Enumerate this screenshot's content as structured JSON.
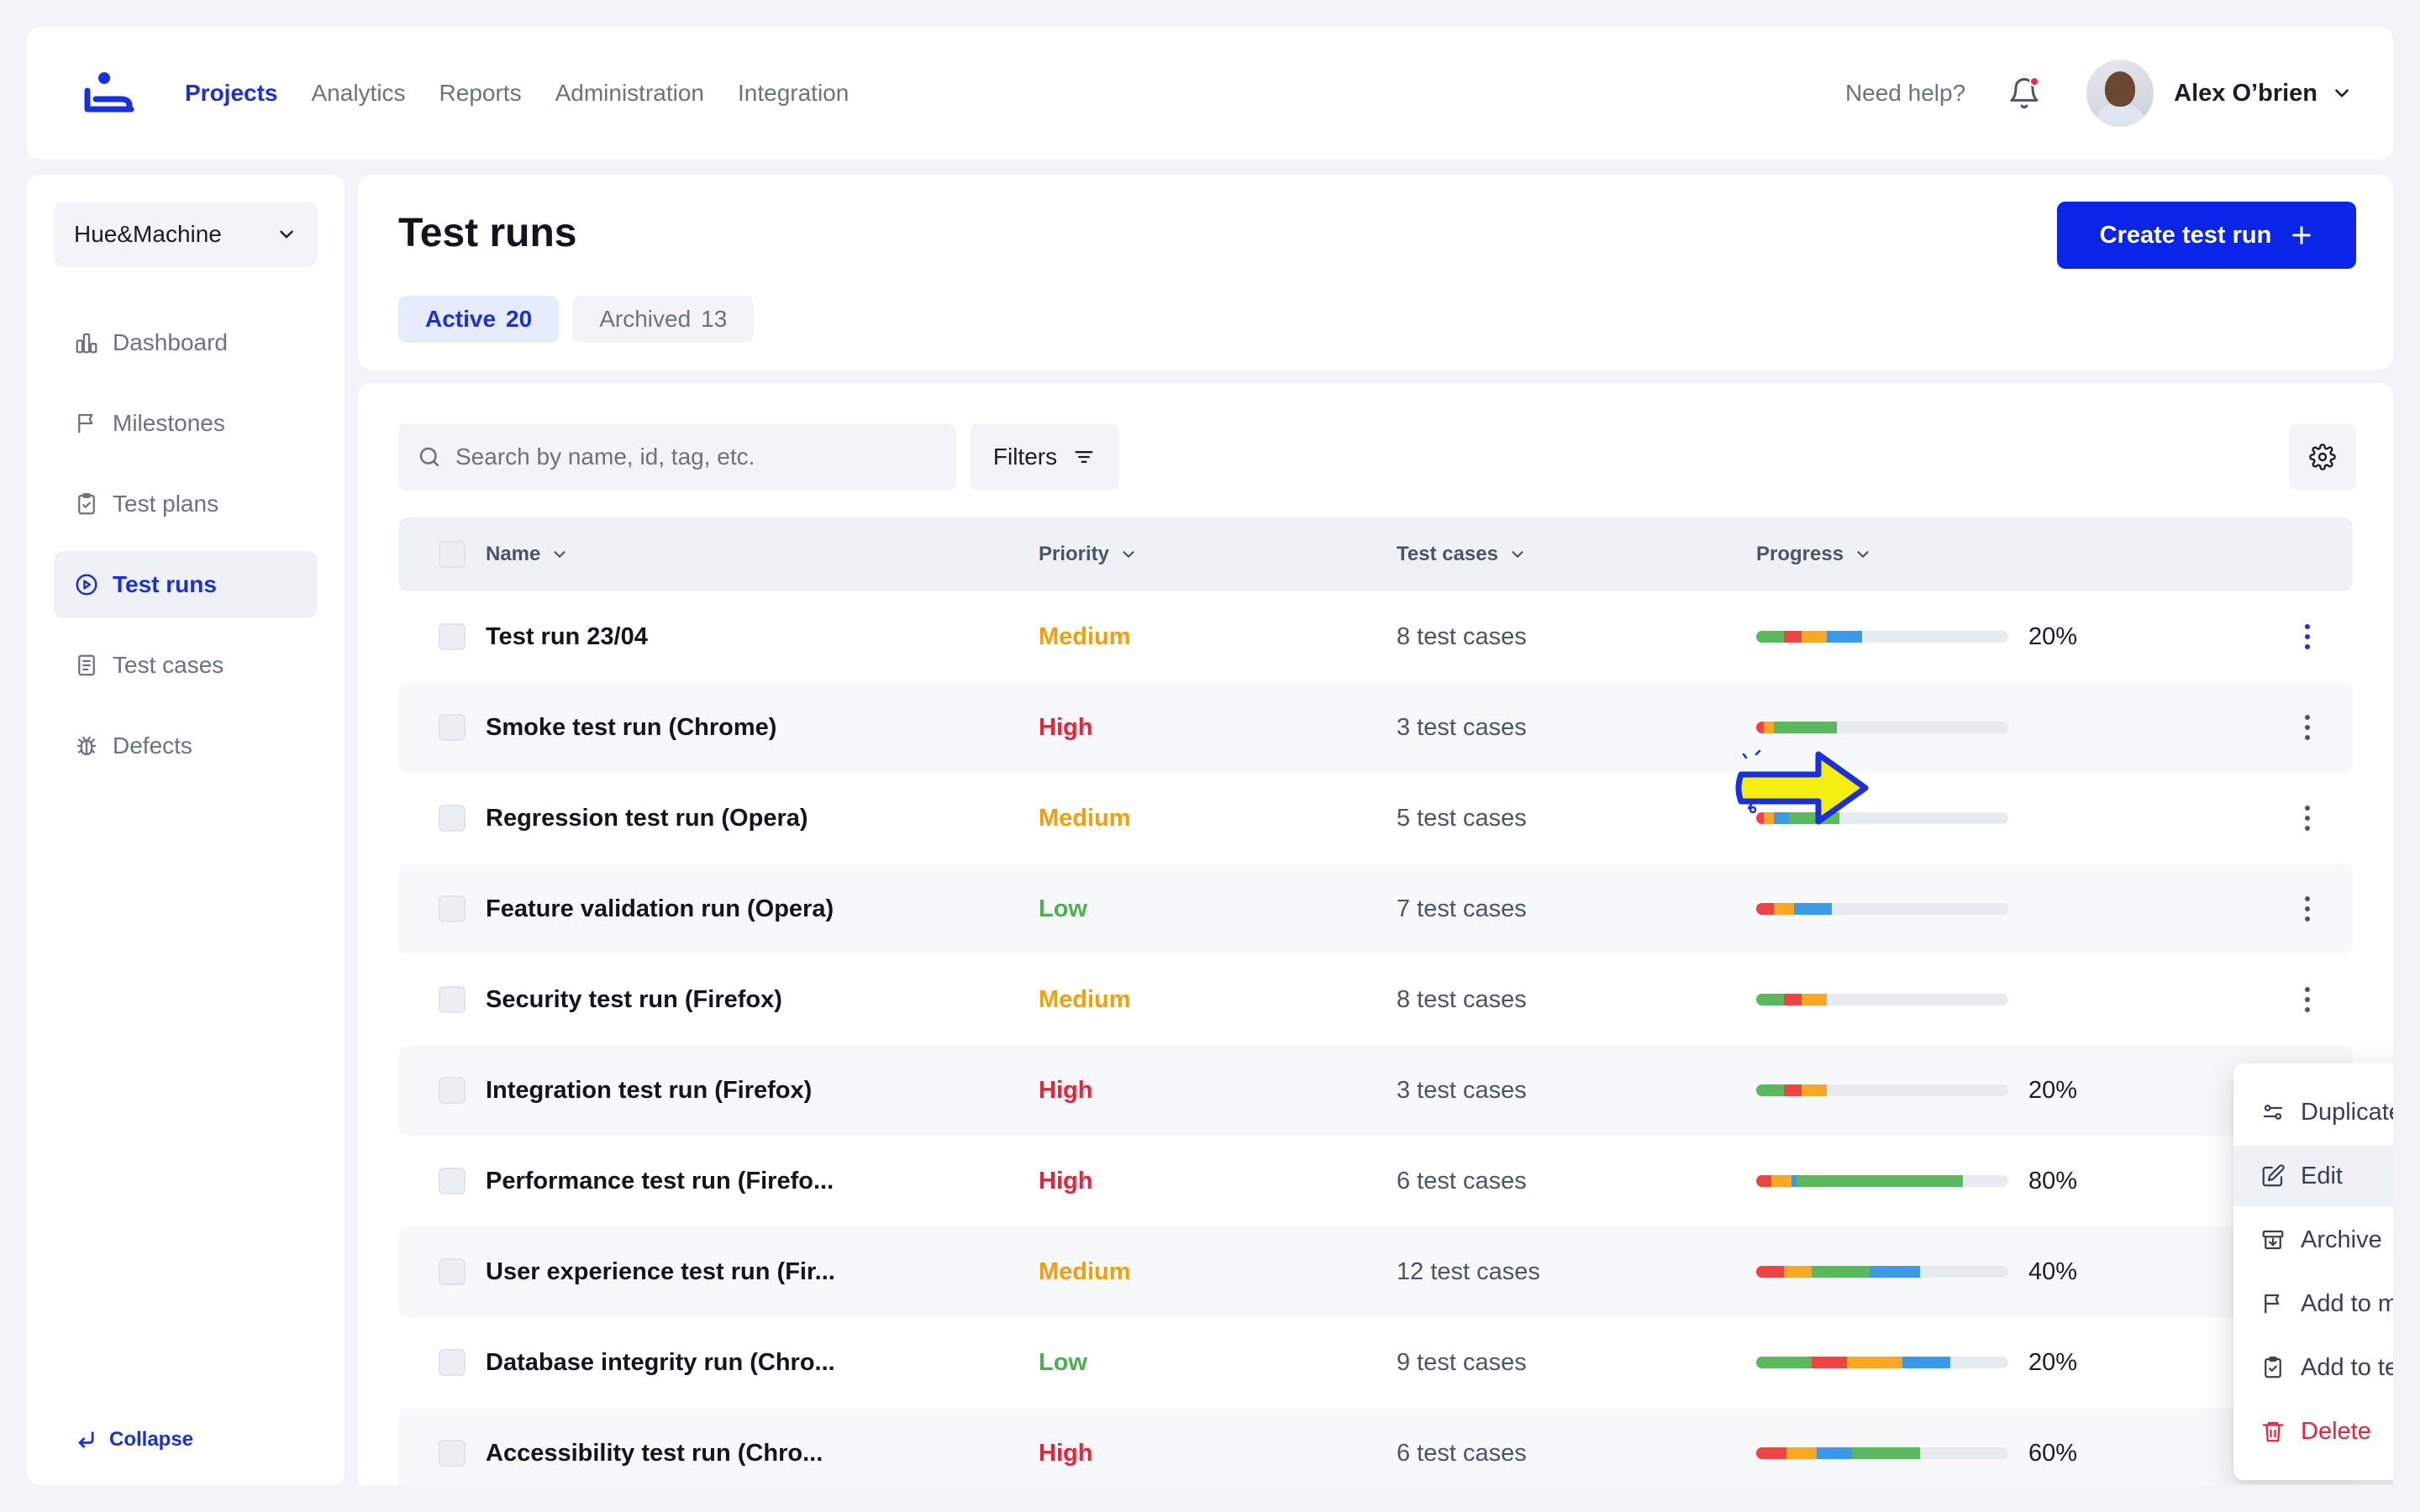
{
  "topnav": {
    "items": [
      {
        "label": "Projects",
        "active": true
      },
      {
        "label": "Analytics"
      },
      {
        "label": "Reports"
      },
      {
        "label": "Administration"
      },
      {
        "label": "Integration"
      }
    ],
    "help_label": "Need help?",
    "user_name": "Alex O’brien"
  },
  "sidebar": {
    "project": "Hue&Machine",
    "items": [
      {
        "label": "Dashboard",
        "icon": "dashboard-icon"
      },
      {
        "label": "Milestones",
        "icon": "flag-icon"
      },
      {
        "label": "Test plans",
        "icon": "clipboard-icon"
      },
      {
        "label": "Test runs",
        "icon": "play-circle-icon",
        "active": true
      },
      {
        "label": "Test cases",
        "icon": "document-icon"
      },
      {
        "label": "Defects",
        "icon": "bug-icon"
      }
    ],
    "collapse_label": "Collapse"
  },
  "header": {
    "title": "Test runs",
    "create_label": "Create test run",
    "tabs": [
      {
        "label": "Active",
        "count": "20",
        "active": true
      },
      {
        "label": "Archived",
        "count": "13"
      }
    ]
  },
  "toolbar": {
    "search_placeholder": "Search by name, id, tag, etc.",
    "filters_label": "Filters"
  },
  "table": {
    "columns": {
      "name": "Name",
      "priority": "Priority",
      "cases": "Test cases",
      "progress": "Progress"
    },
    "rows": [
      {
        "name": "Test run 23/04",
        "priority": "Medium",
        "cases": "8 test cases",
        "progress": "20%",
        "segments": [
          [
            11,
            "#5cb85c"
          ],
          [
            7,
            "#ef4444"
          ],
          [
            10,
            "#f9a825"
          ],
          [
            14,
            "#3b9ae8"
          ]
        ]
      },
      {
        "name": "Smoke test run (Chrome)",
        "priority": "High",
        "cases": "3 test cases",
        "progress": "",
        "segments": [
          [
            3,
            "#ef4444"
          ],
          [
            4,
            "#f9a825"
          ],
          [
            25,
            "#5cb85c"
          ]
        ]
      },
      {
        "name": "Regression test run (Opera)",
        "priority": "Medium",
        "cases": "5 test cases",
        "progress": "",
        "segments": [
          [
            3,
            "#ef4444"
          ],
          [
            4,
            "#f9a825"
          ],
          [
            6,
            "#3b9ae8"
          ],
          [
            20,
            "#5cb85c"
          ]
        ]
      },
      {
        "name": "Feature validation run (Opera)",
        "priority": "Low",
        "cases": "7 test cases",
        "progress": "",
        "segments": [
          [
            7,
            "#ef4444"
          ],
          [
            8,
            "#f9a825"
          ],
          [
            15,
            "#3b9ae8"
          ]
        ]
      },
      {
        "name": "Security test run (Firefox)",
        "priority": "Medium",
        "cases": "8 test cases",
        "progress": "",
        "segments": [
          [
            11,
            "#5cb85c"
          ],
          [
            7,
            "#ef4444"
          ],
          [
            10,
            "#f9a825"
          ]
        ]
      },
      {
        "name": "Integration test run (Firefox)",
        "priority": "High",
        "cases": "3 test cases",
        "progress": "20%",
        "segments": [
          [
            11,
            "#5cb85c"
          ],
          [
            7,
            "#ef4444"
          ],
          [
            10,
            "#f9a825"
          ]
        ]
      },
      {
        "name": "Performance test run (Firefo...",
        "priority": "High",
        "cases": "6 test cases",
        "progress": "80%",
        "segments": [
          [
            6,
            "#ef4444"
          ],
          [
            8,
            "#f9a825"
          ],
          [
            2,
            "#3b9ae8"
          ],
          [
            66,
            "#5cb85c"
          ]
        ]
      },
      {
        "name": "User experience test run (Fir...",
        "priority": "Medium",
        "cases": "12 test cases",
        "progress": "40%",
        "segments": [
          [
            11,
            "#ef4444"
          ],
          [
            11,
            "#f9a825"
          ],
          [
            23,
            "#5cb85c"
          ],
          [
            20,
            "#3b9ae8"
          ]
        ]
      },
      {
        "name": "Database integrity run (Chro...",
        "priority": "Low",
        "cases": "9 test cases",
        "progress": "20%",
        "segments": [
          [
            22,
            "#5cb85c"
          ],
          [
            14,
            "#ef4444"
          ],
          [
            22,
            "#f9a825"
          ],
          [
            19,
            "#3b9ae8"
          ]
        ]
      },
      {
        "name": "Accessibility test run (Chro...",
        "priority": "High",
        "cases": "6 test cases",
        "progress": "60%",
        "segments": [
          [
            12,
            "#ef4444"
          ],
          [
            12,
            "#f9a825"
          ],
          [
            14,
            "#3b9ae8"
          ],
          [
            27,
            "#5cb85c"
          ]
        ]
      }
    ]
  },
  "priority_colors": {
    "High": "#e8233b",
    "Medium": "#f59e0b",
    "Low": "#4caf50"
  },
  "context_menu": {
    "items": [
      {
        "label": "Duplicate and apply configuration",
        "icon": "duplicate-config-icon"
      },
      {
        "label": "Edit",
        "icon": "edit-icon",
        "hover": true
      },
      {
        "label": "Archive",
        "icon": "archive-icon"
      },
      {
        "label": "Add to milestones",
        "icon": "flag-icon"
      },
      {
        "label": "Add to test plans",
        "icon": "clipboard-icon"
      },
      {
        "label": "Delete",
        "icon": "trash-icon",
        "danger": true
      }
    ]
  },
  "colors": {
    "accent": "#0b25e8",
    "background": "#f2f4f7",
    "danger": "#e8233b"
  }
}
